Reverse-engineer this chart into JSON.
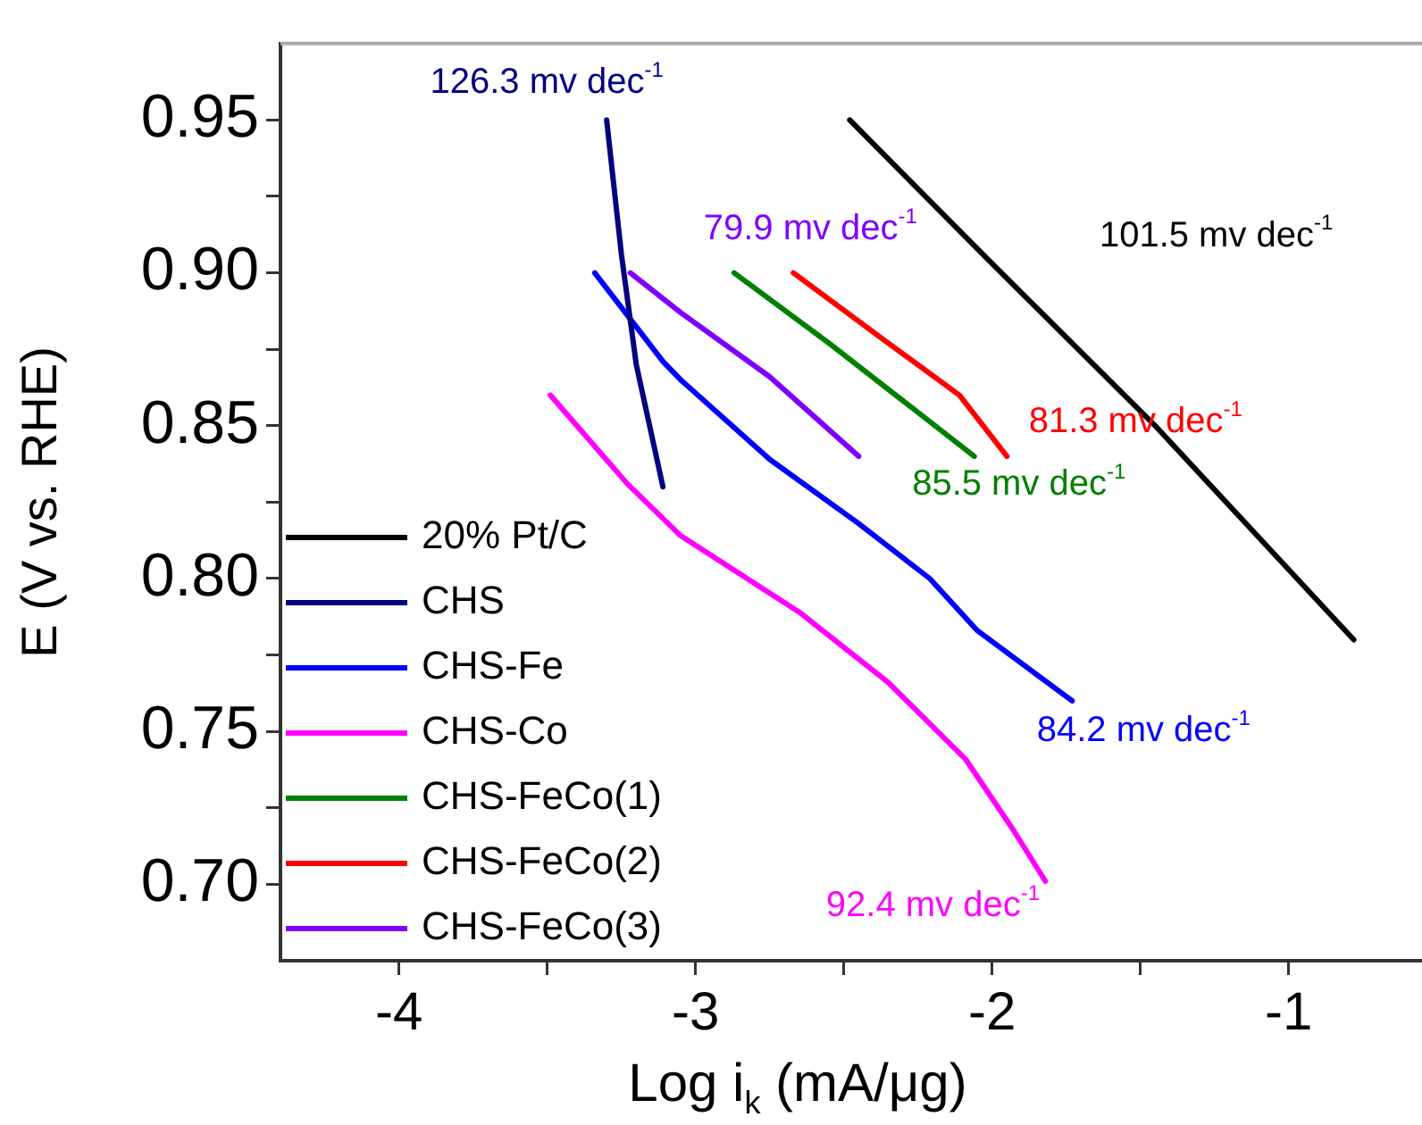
{
  "chart_data": {
    "type": "line",
    "xlabel": "Log i$_{k}$ (mA/μg)",
    "ylabel": "E (V vs. RHE)",
    "xlim": [
      -4.4,
      -0.55
    ],
    "ylim": [
      0.675,
      0.975
    ],
    "xticks": [
      -4,
      {
        "value": -3.5,
        "label": null
      },
      -3,
      {
        "value": -2.5,
        "label": null
      },
      -2,
      {
        "value": -1.5,
        "label": null
      },
      -1
    ],
    "yticks": [
      {
        "value": 0.7,
        "label": "0.70"
      },
      {
        "value": 0.725,
        "label": null
      },
      0.75,
      {
        "value": 0.775,
        "label": null
      },
      {
        "value": 0.8,
        "label": "0.80"
      },
      {
        "value": 0.825,
        "label": null
      },
      0.85,
      {
        "value": 0.875,
        "label": null
      },
      {
        "value": 0.9,
        "label": "0.90"
      },
      {
        "value": 0.925,
        "label": null
      },
      0.95
    ],
    "grid": false,
    "legend": "bottom left",
    "marker": "none",
    "line_style": "solid",
    "series": [
      {
        "name": "20% Pt/C",
        "color": "#000000",
        "x": [
          -2.48,
          -2.01,
          -1.45,
          -0.78
        ],
        "values": [
          0.95,
          0.904,
          0.85,
          0.78
        ]
      },
      {
        "name": "CHS",
        "color": "#000080",
        "x": [
          -3.3,
          -3.25,
          -3.2,
          -3.11
        ],
        "values": [
          0.95,
          0.906,
          0.87,
          0.83
        ]
      },
      {
        "name": "CHS-Fe",
        "color": "#0000ff",
        "x": [
          -3.34,
          -3.11,
          -3.05,
          -2.75,
          -2.45,
          -2.21,
          -2.05,
          -1.73
        ],
        "values": [
          0.9,
          0.871,
          0.865,
          0.839,
          0.818,
          0.8,
          0.783,
          0.76
        ]
      },
      {
        "name": "CHS-Co",
        "color": "#ff00ff",
        "x": [
          -3.49,
          -3.23,
          -3.05,
          -2.65,
          -2.35,
          -2.09,
          -1.93,
          -1.82
        ],
        "values": [
          0.86,
          0.831,
          0.814,
          0.789,
          0.766,
          0.741,
          0.718,
          0.701
        ]
      },
      {
        "name": "CHS-FeCo(1)",
        "color": "#008000",
        "x": [
          -2.87,
          -2.55,
          -2.06
        ],
        "values": [
          0.9,
          0.877,
          0.84
        ]
      },
      {
        "name": "CHS-FeCo(2)",
        "color": "#ff0000",
        "x": [
          -2.67,
          -2.35,
          -2.11,
          -1.95
        ],
        "values": [
          0.9,
          0.877,
          0.86,
          0.84
        ]
      },
      {
        "name": "CHS-FeCo(3)",
        "color": "#8000ff",
        "x": [
          -3.22,
          -3.05,
          -2.75,
          -2.45
        ],
        "values": [
          0.9,
          0.887,
          0.866,
          0.84
        ]
      }
    ],
    "annotations": [
      "101.5 mv dec$^{-1}$",
      "126.3 mv dec$^{-1}$",
      "84.2 mv dec$^{-1}$",
      "92.4 mv dec$^{-1}$",
      "85.5 mv dec$^{-1}$",
      "81.3 mv dec$^{-1}$",
      "79.9 mv dec$^{-1}$"
    ]
  }
}
